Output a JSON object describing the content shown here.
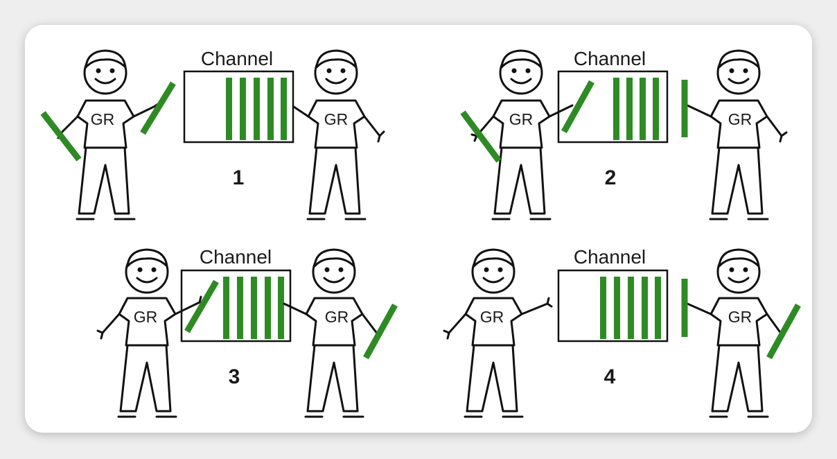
{
  "colors": {
    "bar": "#2e8b24",
    "ink": "#111111",
    "background": "#ffffff"
  },
  "panels": [
    {
      "number": "1",
      "channel_label": "Channel",
      "left_person_label": "GR",
      "right_person_label": "GR"
    },
    {
      "number": "2",
      "channel_label": "Channel",
      "left_person_label": "GR",
      "right_person_label": "GR"
    },
    {
      "number": "3",
      "channel_label": "Channel",
      "left_person_label": "GR",
      "right_person_label": "GR"
    },
    {
      "number": "4",
      "channel_label": "Channel",
      "left_person_label": "GR",
      "right_person_label": "GR"
    }
  ]
}
